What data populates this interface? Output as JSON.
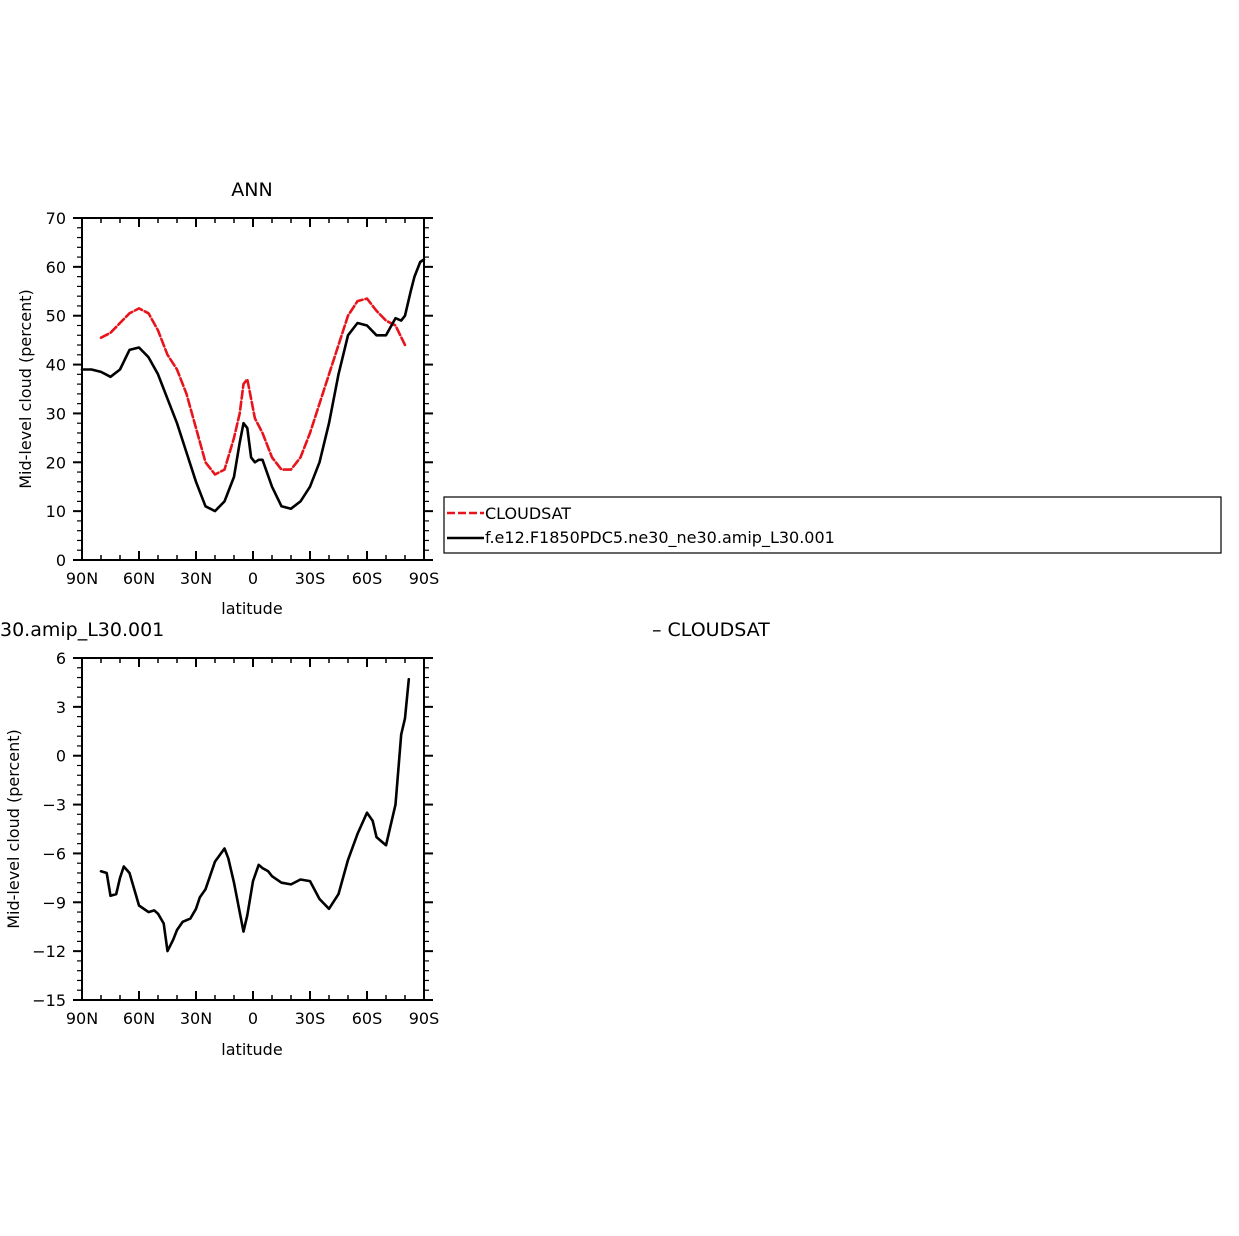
{
  "colors": {
    "cloudsat": "#e8141c",
    "model": "#000000"
  },
  "legend": {
    "entries": [
      "CLOUDSAT",
      "f.e12.F1850PDC5.ne30_ne30.amip_L30.001"
    ]
  },
  "chart_data": [
    {
      "type": "line",
      "title": "ANN",
      "xlabel": "latitude",
      "ylabel": "Mid-level cloud (percent)",
      "xlim": [
        90,
        -90
      ],
      "ylim": [
        0,
        70
      ],
      "xticks": [
        90,
        60,
        30,
        0,
        -30,
        -60,
        -90
      ],
      "xtick_labels": [
        "90N",
        "60N",
        "30N",
        "0",
        "30S",
        "60S",
        "90S"
      ],
      "yticks": [
        0,
        10,
        20,
        30,
        40,
        50,
        60,
        70
      ],
      "ytick_labels": [
        "0",
        "10",
        "20",
        "30",
        "40",
        "50",
        "60",
        "70"
      ],
      "series": [
        {
          "name": "CLOUDSAT",
          "style": "dashed",
          "color": "#e8141c",
          "x": [
            80,
            75,
            70,
            65,
            60,
            55,
            50,
            45,
            40,
            35,
            30,
            25,
            20,
            15,
            10,
            7,
            5,
            3,
            1,
            -1,
            -3,
            -5,
            -10,
            -15,
            -20,
            -25,
            -30,
            -35,
            -40,
            -45,
            -50,
            -55,
            -60,
            -65,
            -70,
            -75,
            -80
          ],
          "y": [
            45.5,
            46.5,
            48.5,
            50.5,
            51.5,
            50.5,
            47,
            42,
            39,
            34,
            27,
            20,
            17.5,
            18.5,
            25,
            30,
            36,
            37,
            33,
            29,
            27.5,
            26,
            21,
            18.5,
            18.5,
            21,
            26,
            32,
            38,
            44,
            50,
            53,
            53.5,
            51,
            49,
            48,
            44
          ]
        },
        {
          "name": "f.e12.F1850PDC5.ne30_ne30.amip_L30.001",
          "style": "solid",
          "color": "#000000",
          "x": [
            90,
            85,
            80,
            75,
            70,
            65,
            60,
            55,
            50,
            45,
            40,
            35,
            30,
            25,
            20,
            15,
            10,
            7,
            5,
            3,
            1,
            -1,
            -3,
            -5,
            -10,
            -15,
            -20,
            -25,
            -30,
            -35,
            -40,
            -45,
            -50,
            -55,
            -60,
            -65,
            -70,
            -75,
            -78,
            -80,
            -83,
            -85,
            -88,
            -90
          ],
          "y": [
            39,
            39,
            38.5,
            37.5,
            39,
            43,
            43.5,
            41.5,
            38,
            33,
            28,
            22,
            16,
            11,
            10,
            12,
            17,
            24,
            28,
            27,
            21,
            20,
            20.5,
            20.5,
            15,
            11,
            10.5,
            12,
            15,
            20,
            28,
            38,
            46,
            48.5,
            48,
            46,
            46,
            49.5,
            49,
            50,
            55,
            58,
            61,
            61.5
          ]
        }
      ]
    },
    {
      "type": "line",
      "title": "30.amip_L30.001",
      "subtitle": "– CLOUDSAT",
      "xlabel": "latitude",
      "ylabel": "Mid-level cloud (percent)",
      "xlim": [
        90,
        -90
      ],
      "ylim": [
        -15,
        6
      ],
      "xticks": [
        90,
        60,
        30,
        0,
        -30,
        -60,
        -90
      ],
      "xtick_labels": [
        "90N",
        "60N",
        "30N",
        "0",
        "30S",
        "60S",
        "90S"
      ],
      "yticks": [
        -15,
        -12,
        -9,
        -6,
        -3,
        0,
        3,
        6
      ],
      "ytick_labels": [
        "−15",
        "−12",
        "−9",
        "−6",
        "−3",
        "0",
        "3",
        "6"
      ],
      "series": [
        {
          "name": "",
          "style": "solid",
          "color": "#000000",
          "x": [
            80,
            77,
            75,
            72,
            70,
            68,
            65,
            62,
            60,
            55,
            52,
            50,
            47,
            45,
            42,
            40,
            37,
            33,
            30,
            28,
            25,
            20,
            15,
            13,
            10,
            7,
            5,
            3,
            0,
            -3,
            -5,
            -8,
            -10,
            -15,
            -20,
            -25,
            -30,
            -35,
            -40,
            -45,
            -50,
            -55,
            -60,
            -63,
            -65,
            -70,
            -75,
            -78,
            -80,
            -82
          ],
          "y": [
            -7.1,
            -7.2,
            -8.6,
            -8.5,
            -7.5,
            -6.8,
            -7.2,
            -8.4,
            -9.2,
            -9.6,
            -9.5,
            -9.7,
            -10.3,
            -12.0,
            -11.3,
            -10.7,
            -10.2,
            -10.0,
            -9.4,
            -8.7,
            -8.2,
            -6.5,
            -5.7,
            -6.3,
            -7.8,
            -9.6,
            -10.8,
            -9.8,
            -7.7,
            -6.7,
            -6.9,
            -7.1,
            -7.4,
            -7.8,
            -7.9,
            -7.6,
            -7.7,
            -8.8,
            -9.4,
            -8.5,
            -6.4,
            -4.8,
            -3.5,
            -4.0,
            -5.0,
            -5.5,
            -3.0,
            1.3,
            2.3,
            4.7
          ]
        }
      ]
    }
  ]
}
